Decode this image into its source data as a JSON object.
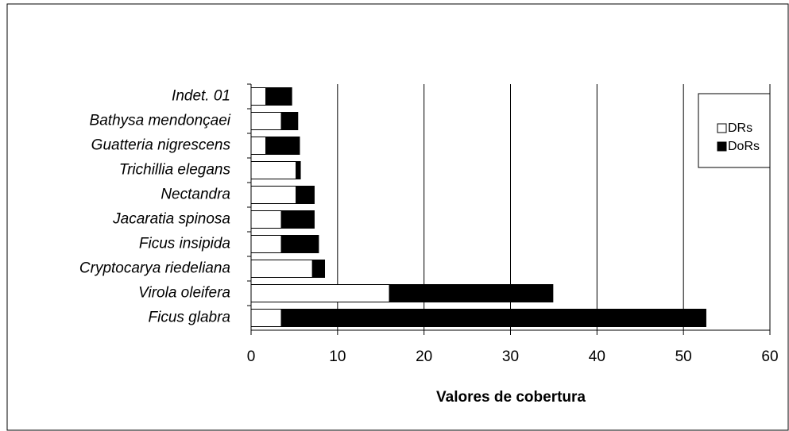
{
  "chart_data": {
    "type": "stacked_bar_horizontal",
    "xlabel": "Valores de cobertura",
    "categories": [
      "Indet. 01",
      "Bathysa mendonçaei",
      "Guatteria nigrescens",
      "Trichillia elegans",
      "Nectandra",
      "Jacaratia spinosa",
      "Ficus insipida",
      "Cryptocarya riedeliana",
      "Virola oleifera",
      "Ficus glabra"
    ],
    "series": [
      {
        "name": "DRs",
        "color": "#ffffff",
        "values": [
          1.7,
          3.5,
          1.7,
          5.2,
          5.2,
          3.5,
          3.5,
          7.1,
          16.0,
          3.5
        ]
      },
      {
        "name": "DoRs",
        "color": "#000000",
        "values": [
          3.0,
          1.9,
          3.9,
          0.5,
          2.1,
          3.8,
          4.3,
          1.4,
          18.9,
          49.1
        ]
      }
    ],
    "xlim": [
      0,
      60
    ],
    "xticks": [
      0,
      10,
      20,
      30,
      40,
      50,
      60
    ],
    "grid": true,
    "legend": "upper right"
  }
}
